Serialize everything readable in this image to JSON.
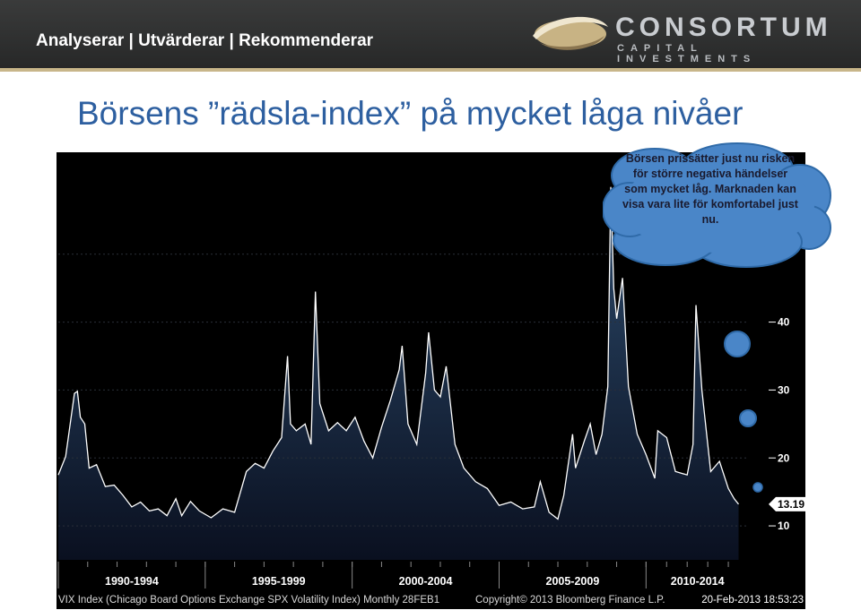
{
  "header": {
    "tagline": "Analyserar | Utvärderar | Rekommenderar",
    "logo_name": "CONSORTUM",
    "logo_sub": "CAPITAL INVESTMENTS"
  },
  "slide": {
    "title": "Börsens ”rädsla-index” på mycket låga nivåer"
  },
  "callout": {
    "text": "Börsen prissätter just nu risken för större negativa händelser som mycket låg. Marknaden kan visa vara lite för komfortabel just nu."
  },
  "colors": {
    "header_bg": "#2e2f2f",
    "title": "#2d5fa0",
    "chart_bg": "#000000",
    "area_top": "#2c4a6b",
    "area_bottom": "#0a1020",
    "line": "#ffffff",
    "bubble": "#4a86c8"
  },
  "chart_data": {
    "type": "area",
    "title": "",
    "xlabel": "",
    "ylabel": "",
    "ylim": [
      5,
      65
    ],
    "yticks": [
      10,
      20,
      30,
      40,
      50
    ],
    "last_value_label": "13.19",
    "x_groups": [
      "1990-1994",
      "1995-1999",
      "2000-2004",
      "2005-2009",
      "2010-2014"
    ],
    "footer_left": "VIX Index (Chicago Board Options Exchange SPX Volatility Index) Monthly 28FEB1",
    "footer_right": "Copyright© 2013 Bloomberg Finance L.P.",
    "footer_date": "20-Feb-2013 18:53:23",
    "series": [
      {
        "name": "VIX Index",
        "x": [
          1990.0,
          1990.25,
          1990.55,
          1990.65,
          1990.75,
          1990.9,
          1991.05,
          1991.3,
          1991.6,
          1991.9,
          1992.2,
          1992.5,
          1992.8,
          1993.1,
          1993.4,
          1993.7,
          1994.0,
          1994.2,
          1994.5,
          1994.8,
          1995.2,
          1995.6,
          1996.0,
          1996.4,
          1996.7,
          1997.0,
          1997.3,
          1997.6,
          1997.8,
          1997.9,
          1998.1,
          1998.4,
          1998.6,
          1998.75,
          1998.9,
          1999.2,
          1999.5,
          1999.8,
          2000.1,
          2000.4,
          2000.7,
          2001.0,
          2001.3,
          2001.6,
          2001.7,
          2001.9,
          2002.2,
          2002.5,
          2002.6,
          2002.8,
          2003.0,
          2003.2,
          2003.5,
          2003.8,
          2004.2,
          2004.6,
          2005.0,
          2005.4,
          2005.8,
          2006.2,
          2006.4,
          2006.7,
          2007.0,
          2007.2,
          2007.5,
          2007.6,
          2007.9,
          2008.1,
          2008.3,
          2008.5,
          2008.7,
          2008.8,
          2008.9,
          2009.0,
          2009.2,
          2009.4,
          2009.7,
          2010.0,
          2010.3,
          2010.4,
          2010.7,
          2011.0,
          2011.4,
          2011.6,
          2011.7,
          2011.9,
          2012.2,
          2012.5,
          2012.8,
          2013.0,
          2013.15
        ],
        "values": [
          17.5,
          20.2,
          29.5,
          29.8,
          26.0,
          25.0,
          18.5,
          19.0,
          15.8,
          16.0,
          14.5,
          12.8,
          13.5,
          12.2,
          12.5,
          11.5,
          14.0,
          11.5,
          13.6,
          12.2,
          11.2,
          12.5,
          12.0,
          18.0,
          19.2,
          18.5,
          21.0,
          23.0,
          35.0,
          25.0,
          24.0,
          25.0,
          22.0,
          44.5,
          28.0,
          24.0,
          25.2,
          24.0,
          26.0,
          22.5,
          20.0,
          24.5,
          28.5,
          33.0,
          36.5,
          25.0,
          22.0,
          32.5,
          38.5,
          30.0,
          29.0,
          33.5,
          22.0,
          18.5,
          16.5,
          15.5,
          13.0,
          13.5,
          12.5,
          12.8,
          16.5,
          12.0,
          11.0,
          14.5,
          23.5,
          18.5,
          22.5,
          25.0,
          20.5,
          23.5,
          30.5,
          59.9,
          45.0,
          40.5,
          46.5,
          30.5,
          23.5,
          20.5,
          17.0,
          24.0,
          23.0,
          18.0,
          17.5,
          22.0,
          42.5,
          30.0,
          18.0,
          19.5,
          15.5,
          14.0,
          13.19
        ]
      }
    ]
  }
}
